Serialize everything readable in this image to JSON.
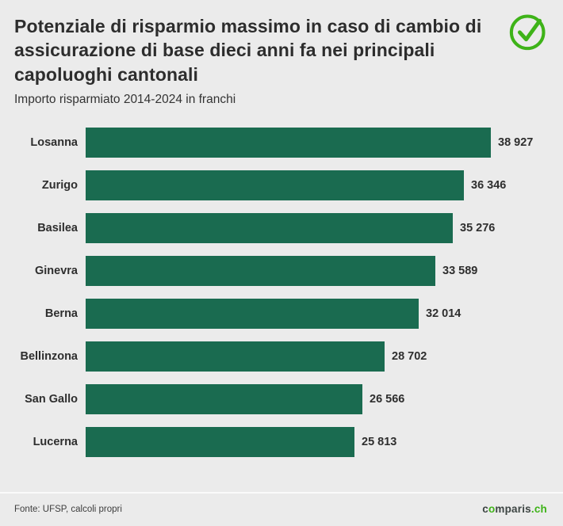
{
  "header": {
    "title": "Potenziale di risparmio massimo in caso di cambio di assicurazione di base dieci anni fa nei principali capoluoghi cantonali",
    "subtitle": "Importo risparmiato 2014-2024 in franchi"
  },
  "chart_data": {
    "type": "bar",
    "orientation": "horizontal",
    "title": "Potenziale di risparmio massimo in caso di cambio di assicurazione di base dieci anni fa nei principali capoluoghi cantonali",
    "subtitle": "Importo risparmiato 2014-2024 in franchi",
    "unit": "franchi (CHF)",
    "categories": [
      "Losanna",
      "Zurigo",
      "Basilea",
      "Ginevra",
      "Berna",
      "Bellinzona",
      "San Gallo",
      "Lucerna"
    ],
    "values": [
      38927,
      36346,
      35276,
      33589,
      32014,
      28702,
      26566,
      25813
    ],
    "value_labels": [
      "38 927",
      "36 346",
      "35 276",
      "33 589",
      "32 014",
      "28 702",
      "26 566",
      "25 813"
    ],
    "xlim": [
      0,
      38927
    ],
    "grid": false,
    "legend": false,
    "bar_color": "#1a6b50"
  },
  "footer": {
    "source": "Fonte: UFSP, calcoli propri",
    "logo": {
      "prefix": "c",
      "o": "o",
      "suffix": "mparis",
      "tld": ".ch"
    }
  },
  "colors": {
    "background": "#ebebeb",
    "bar": "#1a6b50",
    "accent_green": "#3eb318",
    "text": "#2d2d2d"
  }
}
